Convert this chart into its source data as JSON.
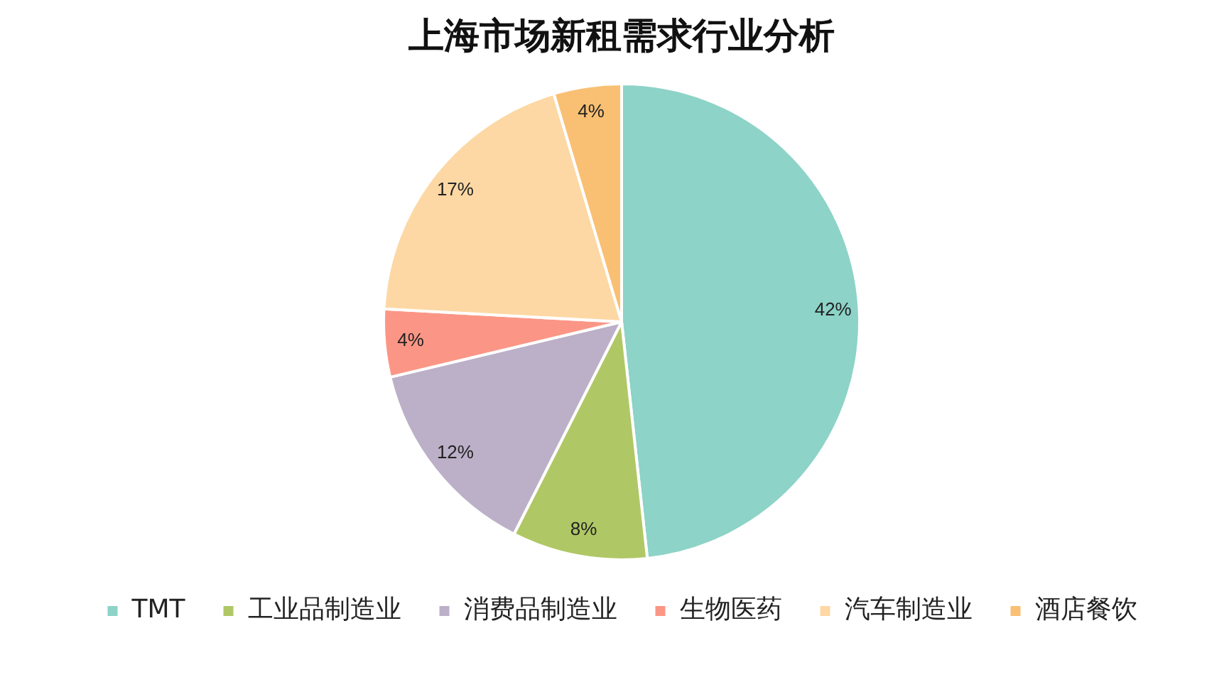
{
  "chart_data": {
    "type": "pie",
    "title": "上海市场新租需求行业分析",
    "categories": [
      "TMT",
      "工业品制造业",
      "消费品制造业",
      "生物医药",
      "汽车制造业",
      "酒店餐饮"
    ],
    "values": [
      42,
      8,
      12,
      4,
      17,
      4
    ],
    "colors": [
      "#8dd3c7",
      "#b0c765",
      "#bcb0c8",
      "#fb9686",
      "#fdd8a4",
      "#f9c073"
    ],
    "value_labels": [
      "42%",
      "8%",
      "12%",
      "4%",
      "17%",
      "4%"
    ],
    "legend": "bottom"
  }
}
